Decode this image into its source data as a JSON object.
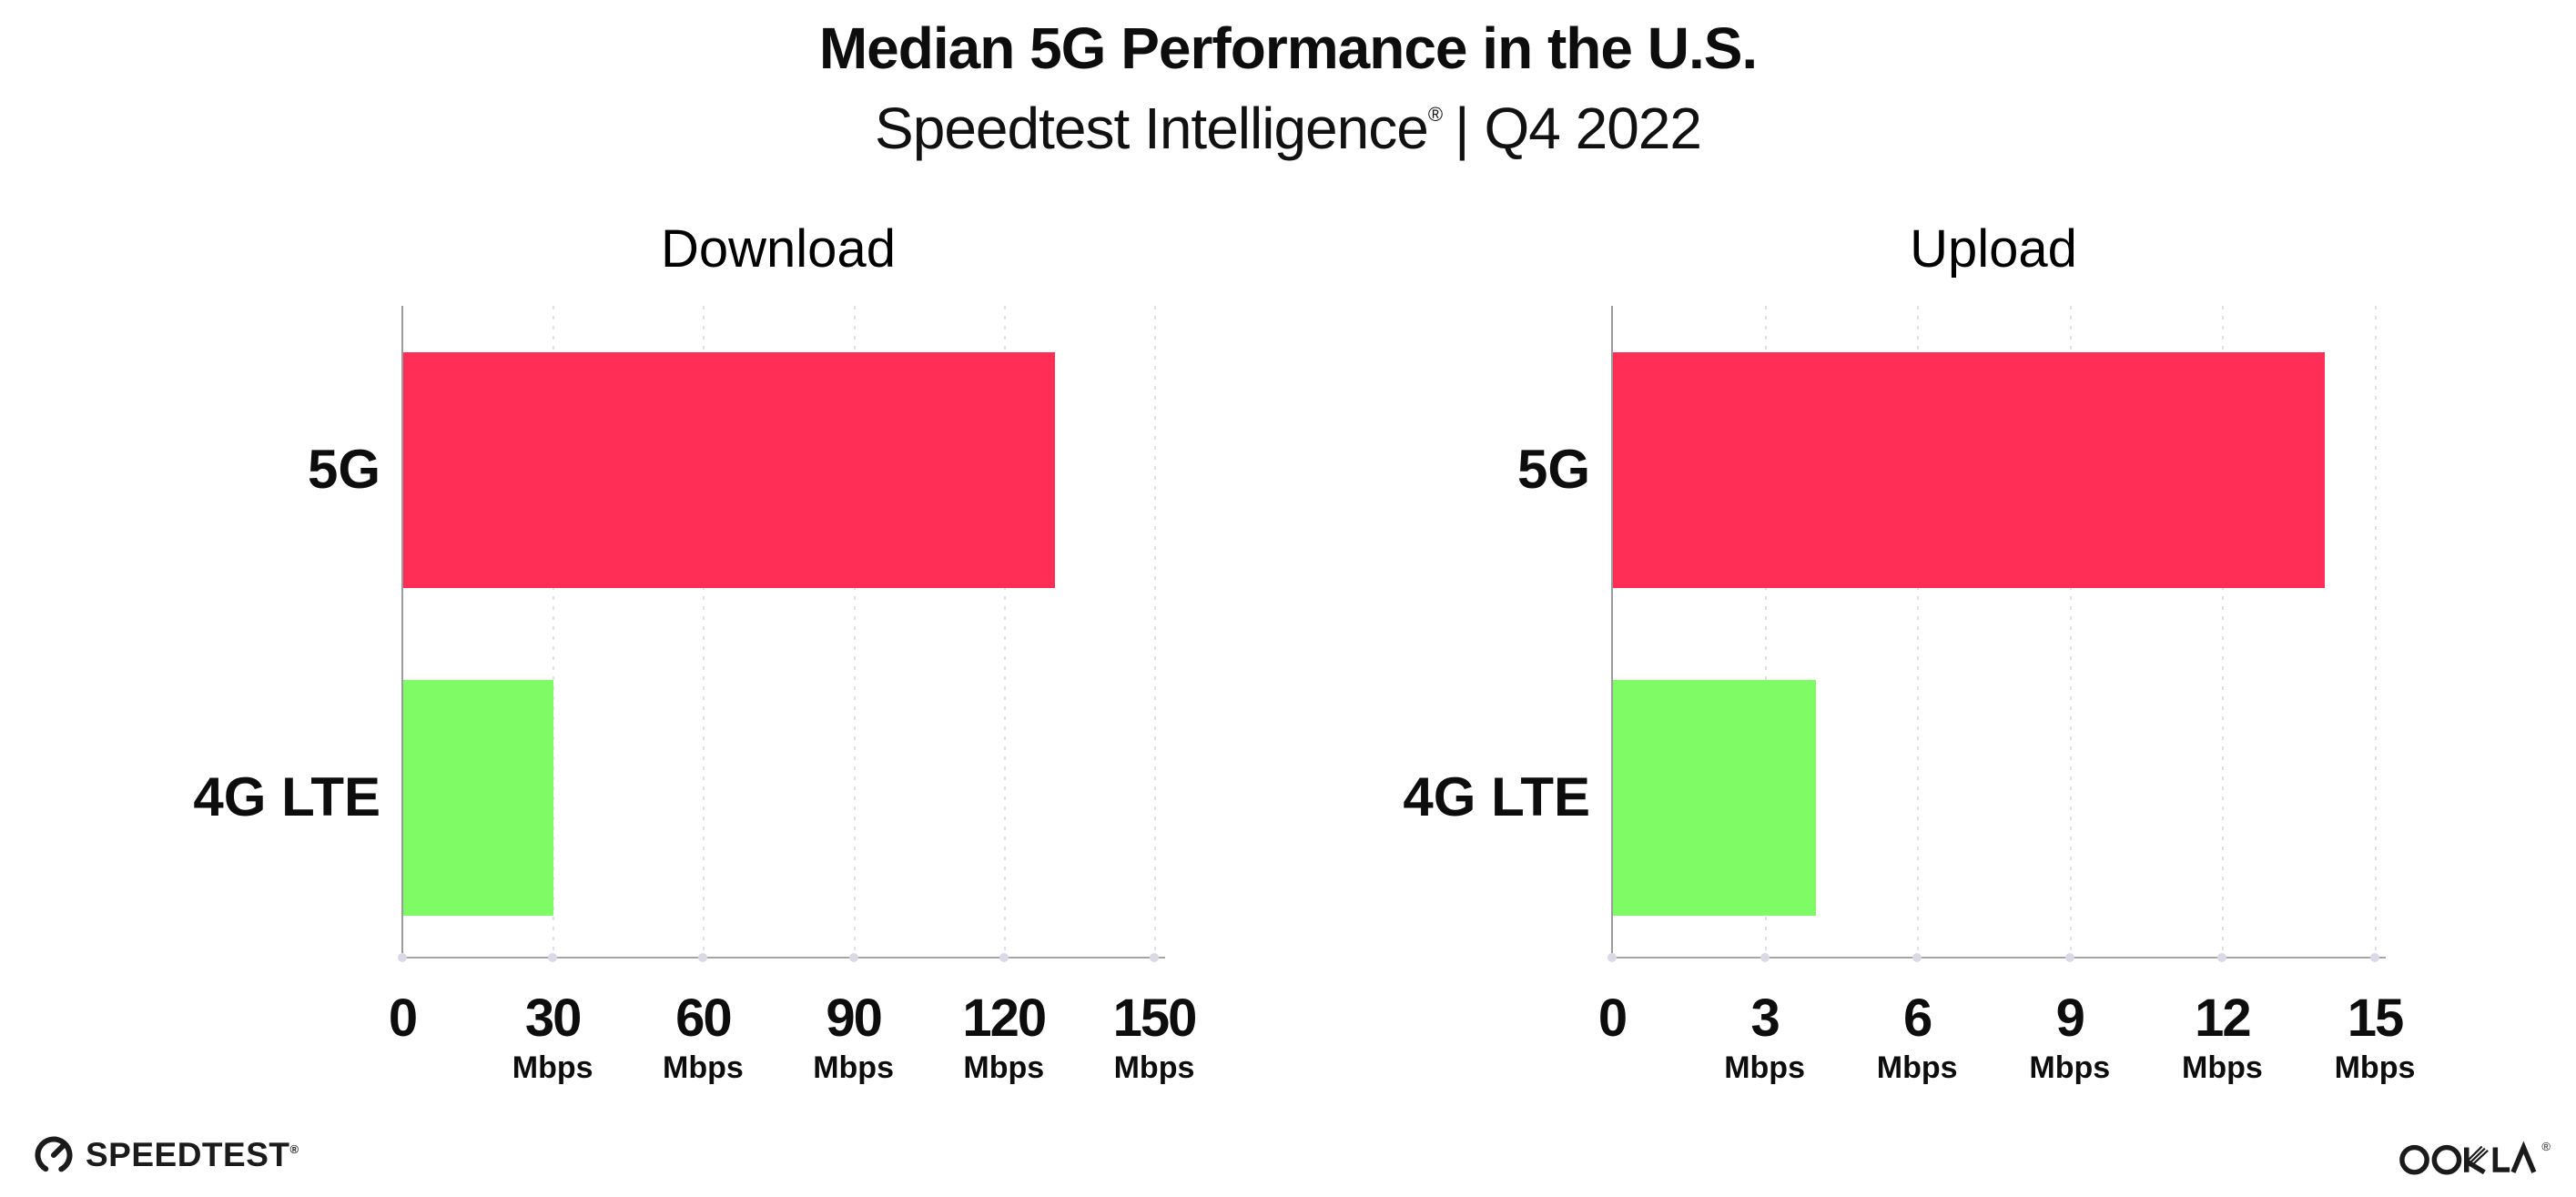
{
  "header": {
    "title": "Median 5G Performance in the U.S.",
    "subtitle_brand": "Speedtest Intelligence",
    "subtitle_reg": "®",
    "subtitle_rest": "| Q4 2022"
  },
  "chart_data": [
    {
      "type": "bar",
      "orientation": "horizontal",
      "title": "Download",
      "categories": [
        "5G",
        "4G LTE"
      ],
      "values": [
        130,
        30
      ],
      "unit": "Mbps",
      "xlabel": "",
      "xlim": [
        0,
        150
      ],
      "xticks": [
        0,
        30,
        60,
        90,
        120,
        150
      ],
      "colors": [
        "#ff2e56",
        "#7efb65"
      ],
      "grid": "vertical-dotted",
      "legend": "none"
    },
    {
      "type": "bar",
      "orientation": "horizontal",
      "title": "Upload",
      "categories": [
        "5G",
        "4G LTE"
      ],
      "values": [
        14,
        4
      ],
      "unit": "Mbps",
      "xlabel": "",
      "xlim": [
        0,
        15
      ],
      "xticks": [
        0,
        3,
        6,
        9,
        12,
        15
      ],
      "colors": [
        "#ff2e56",
        "#7efb65"
      ],
      "grid": "vertical-dotted",
      "legend": "none"
    }
  ],
  "footer": {
    "speedtest_label": "SPEEDTEST",
    "speedtest_mark": "®",
    "ookla_label": "OOKLA",
    "ookla_mark": "®"
  },
  "colors": {
    "bar_5g": "#ff2e56",
    "bar_4g_lte": "#7efb65",
    "axis": "#9b9b9b",
    "gridline": "#dfe0ea",
    "text": "#0d0d0d"
  }
}
